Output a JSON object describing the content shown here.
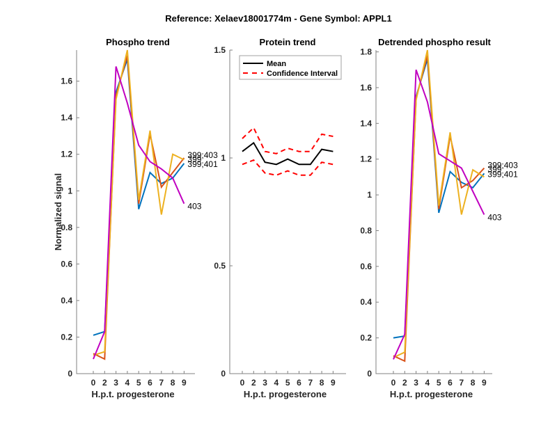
{
  "suptitle": "Reference:  Xelaev18001774m - Gene Symbol:  APPL1",
  "chart_data": [
    {
      "type": "line",
      "title": "Phospho trend",
      "xlabel": "H.p.t. progesterone",
      "ylabel": "Normalized signal",
      "categories": [
        "0",
        "2",
        "3",
        "4",
        "5",
        "6",
        "7",
        "8",
        "9"
      ],
      "ylim": [
        0,
        1.77
      ],
      "yticks": [
        0,
        0.2,
        0.4,
        0.6,
        0.8,
        1,
        1.2,
        1.4,
        1.6
      ],
      "ytick_labels": [
        "0",
        "0.2",
        "0.4",
        "0.6",
        "0.8",
        "1",
        "1.2",
        "1.4",
        "1.6"
      ],
      "grid": false,
      "series": [
        {
          "name": "399;401",
          "color": "#0072BD",
          "values": [
            0.21,
            0.23,
            1.54,
            1.72,
            0.9,
            1.1,
            1.04,
            1.07,
            1.15
          ]
        },
        {
          "name": "399",
          "color": "#D95319",
          "values": [
            0.11,
            0.08,
            1.52,
            1.74,
            0.93,
            1.31,
            1.02,
            1.1,
            1.18
          ]
        },
        {
          "name": "399;403",
          "color": "#EDB120",
          "values": [
            0.1,
            0.12,
            1.5,
            1.77,
            0.95,
            1.33,
            0.87,
            1.2,
            1.17
          ]
        },
        {
          "name": "403",
          "color": "#C000C0",
          "values": [
            0.08,
            0.23,
            1.68,
            1.48,
            1.25,
            1.16,
            1.12,
            1.07,
            0.93
          ]
        }
      ],
      "end_labels": [
        "399;403",
        "399",
        "399;401",
        "403"
      ]
    },
    {
      "type": "line",
      "title": "Protein trend",
      "xlabel": "H.p.t. progesterone",
      "ylabel": "",
      "categories": [
        "0",
        "2",
        "3",
        "4",
        "5",
        "6",
        "7",
        "8",
        "9"
      ],
      "ylim": [
        0,
        1.5
      ],
      "yticks": [
        0,
        0.5,
        1,
        1.5
      ],
      "ytick_labels": [
        "0",
        "0.5",
        "1",
        "1.5"
      ],
      "grid": false,
      "legend": {
        "placement": "top-left",
        "entries": [
          "Mean",
          "Confidence Interval"
        ]
      },
      "series": [
        {
          "name": "Mean",
          "color": "#000000",
          "style": "solid",
          "values": [
            1.03,
            1.07,
            0.98,
            0.97,
            0.995,
            0.97,
            0.97,
            1.04,
            1.03
          ]
        },
        {
          "name": "Confidence Interval (upper)",
          "color": "#FF0000",
          "style": "dashed",
          "values": [
            1.09,
            1.14,
            1.03,
            1.02,
            1.045,
            1.03,
            1.03,
            1.11,
            1.1
          ]
        },
        {
          "name": "Confidence Interval (lower)",
          "color": "#FF0000",
          "style": "dashed",
          "values": [
            0.97,
            0.99,
            0.93,
            0.92,
            0.94,
            0.92,
            0.92,
            0.98,
            0.97
          ]
        }
      ]
    },
    {
      "type": "line",
      "title": "Detrended phospho result",
      "xlabel": "H.p.t. progesterone",
      "ylabel": "",
      "categories": [
        "0",
        "2",
        "3",
        "4",
        "5",
        "6",
        "7",
        "8",
        "9"
      ],
      "ylim": [
        0,
        1.81
      ],
      "yticks": [
        0,
        0.2,
        0.4,
        0.6,
        0.8,
        1,
        1.2,
        1.4,
        1.6,
        1.8
      ],
      "ytick_labels": [
        "0",
        "0.2",
        "0.4",
        "0.6",
        "0.8",
        "1",
        "1.2",
        "1.4",
        "1.6",
        "1.8"
      ],
      "grid": false,
      "series": [
        {
          "name": "399;401",
          "color": "#0072BD",
          "values": [
            0.2,
            0.21,
            1.55,
            1.76,
            0.9,
            1.13,
            1.07,
            1.04,
            1.12
          ]
        },
        {
          "name": "399",
          "color": "#D95319",
          "values": [
            0.1,
            0.07,
            1.54,
            1.78,
            0.92,
            1.33,
            1.04,
            1.08,
            1.15
          ]
        },
        {
          "name": "399;403",
          "color": "#EDB120",
          "values": [
            0.09,
            0.12,
            1.53,
            1.81,
            0.94,
            1.35,
            0.89,
            1.14,
            1.1
          ]
        },
        {
          "name": "403",
          "color": "#C000C0",
          "values": [
            0.08,
            0.22,
            1.7,
            1.52,
            1.23,
            1.19,
            1.15,
            1.02,
            0.89
          ]
        }
      ],
      "end_labels": [
        "399;403",
        "399",
        "399;401",
        "403"
      ]
    }
  ]
}
